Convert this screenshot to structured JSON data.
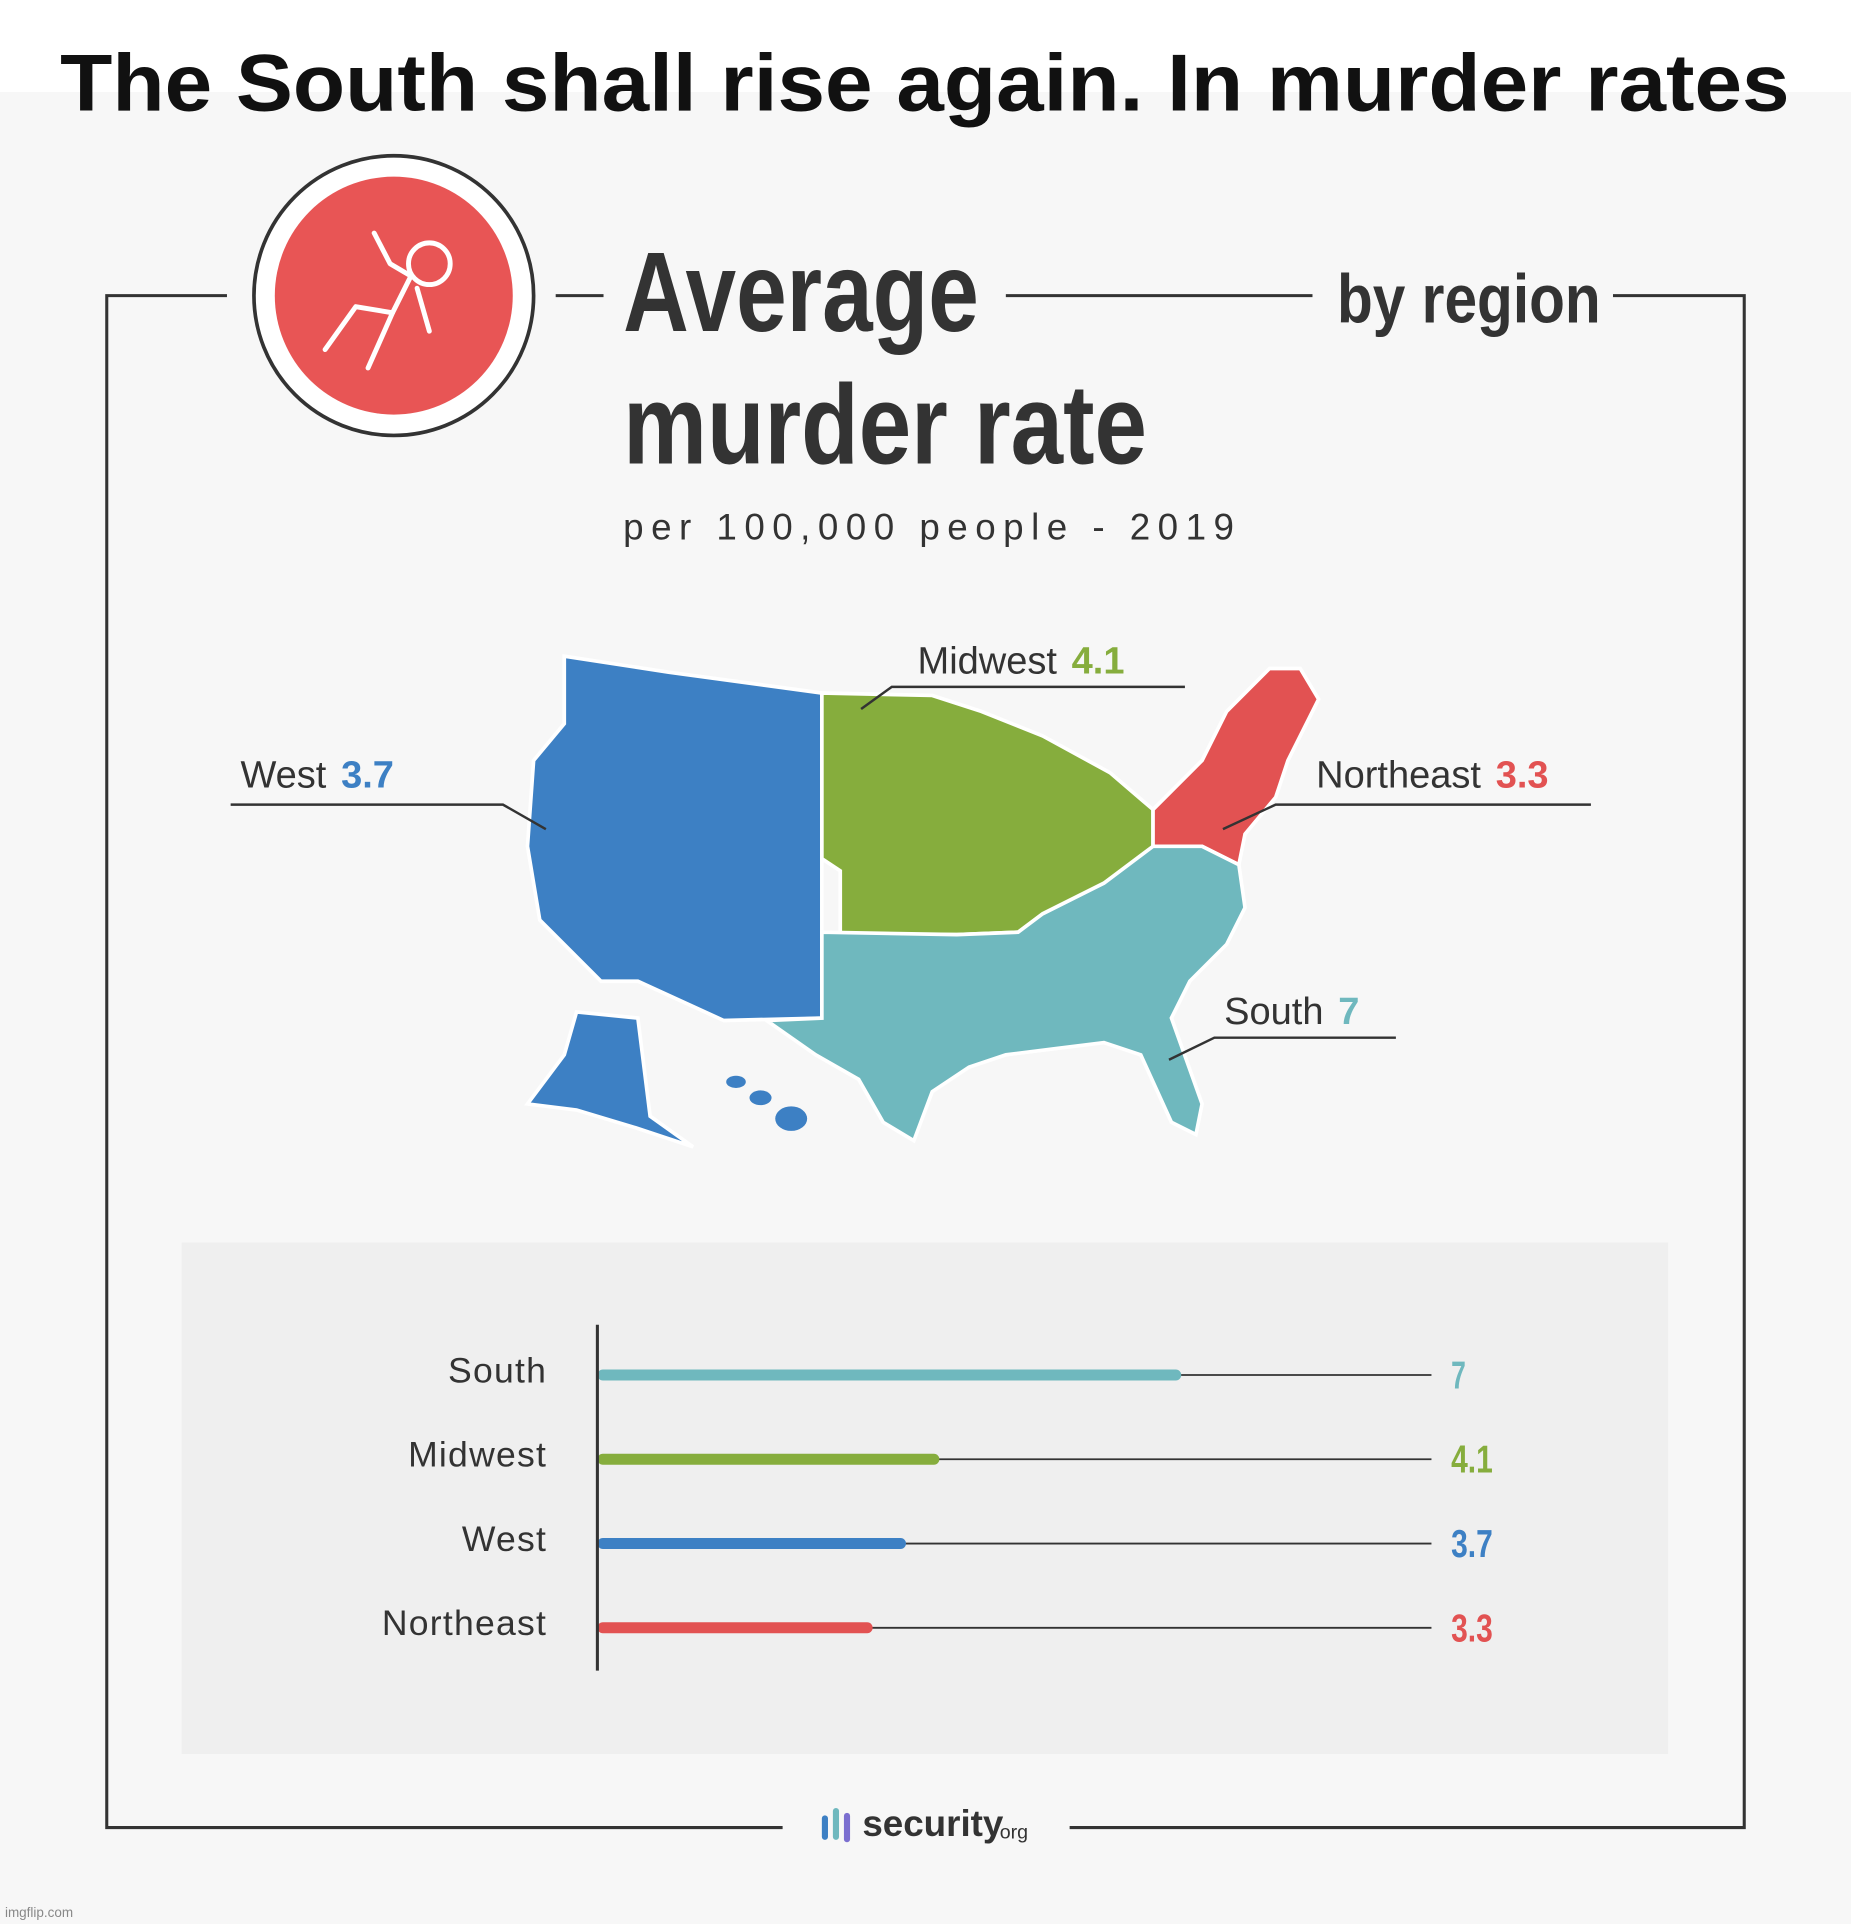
{
  "meme_caption": "The South shall rise again. In murder rates",
  "header": {
    "title_line1": "Average",
    "title_line2": "murder rate",
    "by": "by region",
    "subtitle": "per 100,000 people - 2019"
  },
  "map": {
    "regions": [
      {
        "name": "West",
        "value": 3.7,
        "color": "#3d80c4"
      },
      {
        "name": "Midwest",
        "value": 4.1,
        "color": "#86ad3d"
      },
      {
        "name": "Northeast",
        "value": 3.3,
        "color": "#e25252"
      },
      {
        "name": "South",
        "value": 7,
        "color": "#6fb8be"
      }
    ]
  },
  "chart_data": {
    "type": "bar",
    "orientation": "horizontal",
    "categories": [
      "South",
      "Midwest",
      "West",
      "Northeast"
    ],
    "values": [
      7,
      4.1,
      3.7,
      3.3
    ],
    "colors": [
      "#6fb8be",
      "#86ad3d",
      "#3d80c4",
      "#e25252"
    ],
    "xlim": [
      0,
      10
    ]
  },
  "footer": {
    "brand": "security",
    "brand_suffix": "org"
  },
  "watermark": "imgflip.com"
}
